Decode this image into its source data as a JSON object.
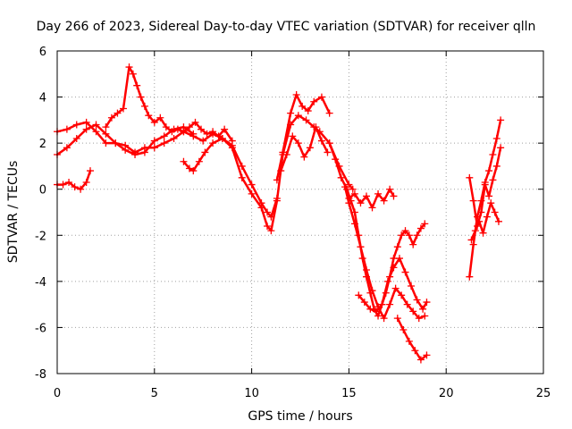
{
  "chart_data": {
    "type": "scatter",
    "title": "Day 266 of 2023, Sidereal Day-to-day VTEC variation (SDTVAR) for receiver qlln",
    "xlabel": "GPS time / hours",
    "ylabel": "SDTVAR / TECUs",
    "xlim": [
      0,
      25
    ],
    "ylim": [
      -8,
      6
    ],
    "xticks": [
      0,
      5,
      10,
      15,
      20,
      25
    ],
    "yticks": [
      -8,
      -6,
      -4,
      -2,
      0,
      2,
      4,
      6
    ],
    "grid": true,
    "marker": "+",
    "color": "#ff0000",
    "series": [
      {
        "x": [
          0.0,
          0.5,
          1.0,
          1.5,
          2.0,
          2.5,
          3.0,
          3.5,
          4.0,
          4.5,
          5.0,
          5.5,
          6.0,
          6.5,
          7.0,
          7.5,
          8.0,
          8.5,
          9.0,
          9.5,
          10.0,
          10.5,
          10.8,
          11.0,
          11.3,
          11.6,
          12.0,
          12.4,
          12.8,
          13.2,
          13.5,
          14.0,
          14.5,
          15.0,
          15.2
        ],
        "y": [
          2.5,
          2.6,
          2.8,
          2.9,
          2.5,
          2.0,
          2.0,
          1.9,
          1.6,
          1.8,
          1.8,
          2.0,
          2.2,
          2.5,
          2.3,
          2.1,
          2.4,
          2.2,
          1.8,
          0.5,
          -0.2,
          -0.8,
          -1.6,
          -1.8,
          -0.5,
          1.5,
          2.8,
          3.2,
          3.0,
          2.7,
          2.5,
          2.0,
          1.0,
          0.2,
          0.0
        ]
      },
      {
        "x": [
          0.0,
          0.5,
          1.0,
          1.5,
          2.0,
          2.5,
          3.0,
          3.5,
          4.0,
          4.5,
          5.0,
          5.5,
          6.0,
          6.5,
          7.0
        ],
        "y": [
          1.5,
          1.8,
          2.2,
          2.6,
          2.8,
          2.4,
          2.0,
          1.7,
          1.5,
          1.6,
          2.1,
          2.3,
          2.6,
          2.7,
          2.4
        ]
      },
      {
        "x": [
          0.0,
          0.3,
          0.6,
          0.9,
          1.2,
          1.5,
          1.7
        ],
        "y": [
          0.2,
          0.2,
          0.3,
          0.1,
          0.0,
          0.3,
          0.8
        ]
      },
      {
        "x": [
          2.5,
          2.8,
          3.1,
          3.4,
          3.7,
          3.9,
          4.1,
          4.3,
          4.5,
          4.7,
          5.0,
          5.3,
          5.6,
          5.9,
          6.2,
          6.5,
          6.8,
          7.1,
          7.4,
          7.7,
          8.0,
          8.3,
          8.6,
          9.0
        ],
        "y": [
          2.7,
          3.1,
          3.3,
          3.5,
          5.3,
          5.0,
          4.5,
          4.0,
          3.6,
          3.2,
          2.9,
          3.1,
          2.7,
          2.5,
          2.6,
          2.5,
          2.7,
          2.9,
          2.6,
          2.4,
          2.5,
          2.3,
          2.6,
          2.1
        ]
      },
      {
        "x": [
          6.5,
          6.8,
          7.0,
          7.3,
          7.6,
          8.0,
          8.5,
          9.0,
          9.5,
          10.0,
          10.5,
          10.8,
          11.0,
          11.3
        ],
        "y": [
          1.2,
          0.9,
          0.8,
          1.2,
          1.6,
          2.0,
          2.2,
          1.9,
          1.0,
          0.2,
          -0.6,
          -1.0,
          -1.2,
          -0.4
        ]
      },
      {
        "x": [
          11.3,
          11.6,
          12.0,
          12.3,
          12.6,
          12.9,
          13.2,
          13.6,
          14.0
        ],
        "y": [
          0.4,
          1.6,
          3.3,
          4.1,
          3.6,
          3.4,
          3.8,
          4.0,
          3.3
        ]
      },
      {
        "x": [
          11.5,
          11.8,
          12.1,
          12.4,
          12.7,
          13.0,
          13.3,
          13.6,
          13.9
        ],
        "y": [
          0.8,
          1.5,
          2.3,
          2.0,
          1.4,
          1.8,
          2.7,
          2.1,
          1.6
        ]
      },
      {
        "x": [
          14.0,
          14.3,
          14.6,
          14.9,
          15.1,
          15.3,
          15.5,
          15.7,
          15.9,
          16.1,
          16.3,
          16.5,
          16.7,
          16.9,
          17.1,
          17.3,
          17.5,
          17.7,
          17.9,
          18.1,
          18.3,
          18.5,
          18.7,
          18.9
        ],
        "y": [
          2.0,
          1.3,
          0.5,
          0.0,
          -0.5,
          -1.0,
          -2.0,
          -3.0,
          -3.8,
          -4.5,
          -5.2,
          -5.5,
          -5.0,
          -4.5,
          -3.8,
          -3.0,
          -2.5,
          -2.0,
          -1.8,
          -2.0,
          -2.4,
          -2.0,
          -1.7,
          -1.5
        ]
      },
      {
        "x": [
          14.8,
          15.0,
          15.3,
          15.6,
          15.9,
          16.2,
          16.5,
          16.8,
          17.1,
          17.4,
          17.7,
          18.0,
          18.3,
          18.6,
          18.9
        ],
        "y": [
          0.1,
          -0.6,
          -1.5,
          -2.5,
          -3.5,
          -4.4,
          -5.1,
          -5.6,
          -5.0,
          -4.3,
          -4.6,
          -5.0,
          -5.3,
          -5.6,
          -5.5
        ]
      },
      {
        "x": [
          15.0,
          15.3,
          15.6,
          15.9,
          16.2,
          16.5,
          16.8,
          17.1,
          17.3
        ],
        "y": [
          -0.4,
          -0.2,
          -0.6,
          -0.3,
          -0.8,
          -0.2,
          -0.5,
          0.0,
          -0.3
        ]
      },
      {
        "x": [
          15.5,
          15.8,
          16.1,
          16.4,
          16.7,
          17.0,
          17.3,
          17.6,
          17.9,
          18.2,
          18.5,
          18.8,
          19.0
        ],
        "y": [
          -4.6,
          -4.9,
          -5.2,
          -5.3,
          -5.0,
          -4.0,
          -3.4,
          -3.0,
          -3.6,
          -4.2,
          -4.8,
          -5.2,
          -4.9
        ]
      },
      {
        "x": [
          17.5,
          17.8,
          18.1,
          18.4,
          18.7,
          19.0
        ],
        "y": [
          -5.6,
          -6.1,
          -6.6,
          -7.0,
          -7.4,
          -7.2
        ]
      },
      {
        "x": [
          21.2,
          21.4,
          21.6,
          21.8,
          22.0,
          22.2,
          22.4,
          22.6,
          22.8
        ],
        "y": [
          -3.8,
          -2.4,
          -1.2,
          -0.5,
          0.3,
          0.8,
          1.5,
          2.2,
          3.0
        ]
      },
      {
        "x": [
          21.2,
          21.4,
          21.6,
          21.8,
          22.0,
          22.2,
          22.4,
          22.6,
          22.8
        ],
        "y": [
          0.5,
          -0.5,
          -1.6,
          -1.0,
          0.2,
          -0.3,
          0.4,
          1.0,
          1.8
        ]
      },
      {
        "x": [
          21.3,
          21.5,
          21.7,
          21.9,
          22.1,
          22.3,
          22.5,
          22.7
        ],
        "y": [
          -2.2,
          -1.8,
          -1.4,
          -1.9,
          -1.2,
          -0.6,
          -1.0,
          -1.4
        ]
      }
    ]
  }
}
